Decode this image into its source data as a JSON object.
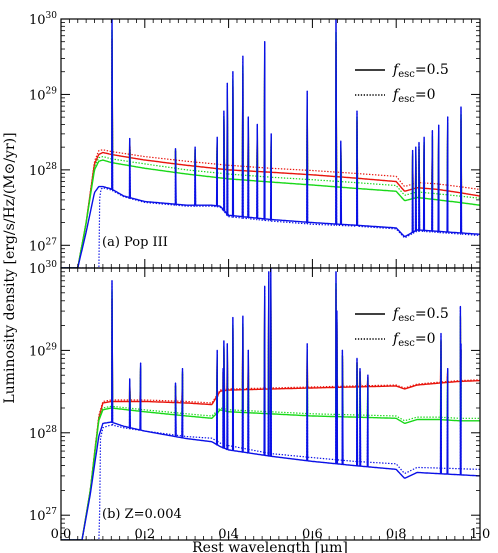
{
  "figure": {
    "ylabel": "Luminosity density [erg/s/Hz/(M⊙/yr)]",
    "xlabel": "Rest wavelength [μm]",
    "xlim": [
      0.0,
      1.0
    ],
    "xticks": [
      "0.0",
      "0.2",
      "0.4",
      "0.6",
      "0.8",
      "1.0"
    ],
    "legend": [
      {
        "f": "f",
        "sub": "esc",
        "value": "=0.5",
        "style": "solid"
      },
      {
        "f": "f",
        "sub": "esc",
        "value": "=0",
        "style": "dotted"
      }
    ],
    "colors": {
      "red": "#e8140c",
      "green": "#18d818",
      "blue": "#0a10e6",
      "axis": "#000000"
    }
  },
  "chart_data": [
    {
      "type": "line",
      "panel_label": "(a) Pop III",
      "y_scale": "log",
      "ylim": [
        5e+26,
        1e+30
      ],
      "yticks": [
        "10^27",
        "10^28",
        "10^29",
        "10^30"
      ],
      "continuum": [
        {
          "color": "red",
          "fesc": 0.5,
          "x": [
            0.04,
            0.06,
            0.08,
            0.09,
            0.1,
            0.12,
            0.2,
            0.3,
            0.4,
            0.5,
            0.6,
            0.7,
            0.8,
            0.82,
            0.85,
            0.9,
            0.95,
            1.0
          ],
          "y": [
            5e+26,
            2e+27,
            1.2e+28,
            1.6e+28,
            1.7e+28,
            1.6e+28,
            1.35e+28,
            1.15e+28,
            1e+28,
            9.3e+27,
            8.6e+27,
            7.8e+27,
            7e+27,
            5.2e+27,
            5.8e+27,
            5.5e+27,
            5e+27,
            4.5e+27
          ]
        },
        {
          "color": "red",
          "fesc": 0.0,
          "x": [
            0.04,
            0.06,
            0.08,
            0.09,
            0.1,
            0.12,
            0.2,
            0.3,
            0.4,
            0.5,
            0.6,
            0.7,
            0.8,
            0.82,
            0.85,
            0.9,
            0.95,
            1.0
          ],
          "y": [
            5e+26,
            2e+27,
            1.3e+28,
            1.8e+28,
            1.85e+28,
            1.75e+28,
            1.5e+28,
            1.3e+28,
            1.15e+28,
            1.05e+28,
            9.8e+27,
            9e+27,
            8.2e+27,
            6e+27,
            6.8e+27,
            6.5e+27,
            6e+27,
            5.5e+27
          ]
        },
        {
          "color": "green",
          "fesc": 0.5,
          "x": [
            0.04,
            0.06,
            0.08,
            0.09,
            0.1,
            0.12,
            0.2,
            0.3,
            0.4,
            0.5,
            0.6,
            0.7,
            0.8,
            0.82,
            0.85,
            0.9,
            0.95,
            1.0
          ],
          "y": [
            5e+26,
            2e+27,
            1e+28,
            1.3e+28,
            1.35e+28,
            1.25e+28,
            1.05e+28,
            8.8e+27,
            7.6e+27,
            6.9e+27,
            6.3e+27,
            5.7e+27,
            5.2e+27,
            3.9e+27,
            4.3e+27,
            4e+27,
            3.7e+27,
            3.4e+27
          ]
        },
        {
          "color": "green",
          "fesc": 0.0,
          "x": [
            0.04,
            0.06,
            0.08,
            0.09,
            0.1,
            0.12,
            0.2,
            0.3,
            0.4,
            0.5,
            0.6,
            0.7,
            0.8,
            0.82,
            0.85,
            0.9,
            0.95,
            1.0
          ],
          "y": [
            5e+26,
            2e+27,
            1.1e+28,
            1.45e+28,
            1.5e+28,
            1.4e+28,
            1.2e+28,
            1e+28,
            8.8e+27,
            8e+27,
            7.4e+27,
            6.8e+27,
            6.2e+27,
            4.6e+27,
            5.1e+27,
            4.8e+27,
            4.5e+27,
            4.2e+27
          ]
        },
        {
          "color": "blue",
          "fesc": 0.5,
          "x": [
            0.04,
            0.06,
            0.08,
            0.09,
            0.1,
            0.12,
            0.15,
            0.2,
            0.25,
            0.3,
            0.36,
            0.38,
            0.4,
            0.5,
            0.6,
            0.7,
            0.8,
            0.82,
            0.85,
            1.0
          ],
          "y": [
            5e+26,
            1.5e+27,
            5e+27,
            6e+27,
            6e+27,
            5.6e+27,
            4.5e+27,
            3.8e+27,
            3.6e+27,
            3.4e+27,
            3.4e+27,
            3.3e+27,
            2.5e+27,
            2.2e+27,
            2e+27,
            1.85e+27,
            1.7e+27,
            1.3e+27,
            1.6e+27,
            1.4e+27
          ]
        },
        {
          "color": "blue",
          "fesc": 0.0,
          "x": [
            0.04,
            0.07,
            0.085,
            0.091,
            0.092,
            0.095,
            0.1,
            0.12,
            0.15,
            0.2,
            0.25,
            0.3,
            0.36,
            0.38,
            0.4,
            0.5,
            0.6,
            0.7,
            0.8,
            0.82,
            0.85,
            1.0
          ],
          "y": [
            5e+26,
            5e+26,
            5e+26,
            5e+26,
            4e+27,
            5.5e+27,
            5.8e+27,
            5.4e+27,
            4.4e+27,
            3.7e+27,
            3.5e+27,
            3.3e+27,
            3.3e+27,
            3.2e+27,
            2.4e+27,
            2.1e+27,
            1.9e+27,
            1.8e+27,
            1.65e+27,
            1.25e+27,
            1.55e+27,
            1.35e+27
          ]
        }
      ],
      "lines": [
        {
          "x": 0.1216,
          "peak": 1e+30
        },
        {
          "x": 0.164,
          "peak": 2.6e+28
        },
        {
          "x": 0.2733,
          "peak": 1.9e+28
        },
        {
          "x": 0.32,
          "peak": 2e+28
        },
        {
          "x": 0.3727,
          "peak": 2.7e+28
        },
        {
          "x": 0.3889,
          "peak": 6e+28
        },
        {
          "x": 0.397,
          "peak": 1.4e+29
        },
        {
          "x": 0.4102,
          "peak": 2e+29
        },
        {
          "x": 0.4341,
          "peak": 3.2e+29
        },
        {
          "x": 0.4471,
          "peak": 5e+28
        },
        {
          "x": 0.4686,
          "peak": 4e+28
        },
        {
          "x": 0.4861,
          "peak": 5e+29
        },
        {
          "x": 0.5016,
          "peak": 3e+28
        },
        {
          "x": 0.5876,
          "peak": 1.1e+29
        },
        {
          "x": 0.6563,
          "peak": 1e+30
        },
        {
          "x": 0.6678,
          "peak": 2.4e+28
        },
        {
          "x": 0.7065,
          "peak": 6e+28
        },
        {
          "x": 0.8392,
          "peak": 1.8e+28
        },
        {
          "x": 0.8467,
          "peak": 2e+28
        },
        {
          "x": 0.8545,
          "peak": 2.3e+28
        },
        {
          "x": 0.8665,
          "peak": 2.7e+28
        },
        {
          "x": 0.8863,
          "peak": 3.3e+28
        },
        {
          "x": 0.9015,
          "peak": 3.9e+28
        },
        {
          "x": 0.9229,
          "peak": 5e+28
        },
        {
          "x": 0.9546,
          "peak": 6.8e+28
        },
        {
          "x": 1.0049,
          "peak": 3.3e+29
        }
      ]
    },
    {
      "type": "line",
      "panel_label": "(b) Z=0.004",
      "y_scale": "log",
      "ylim": [
        5e+26,
        1e+30
      ],
      "yticks": [
        "10^27",
        "10^28",
        "10^29",
        "10^30"
      ],
      "continuum": [
        {
          "color": "red",
          "fesc": 0.5,
          "x": [
            0.05,
            0.07,
            0.09,
            0.1,
            0.12,
            0.2,
            0.3,
            0.36,
            0.38,
            0.4,
            0.5,
            0.6,
            0.7,
            0.8,
            0.82,
            0.85,
            0.9,
            0.95,
            1.0
          ],
          "y": [
            5e+26,
            2e+27,
            1.5e+28,
            2.3e+28,
            2.4e+28,
            2.4e+28,
            2.3e+28,
            2.2e+28,
            3.2e+28,
            3.3e+28,
            3.4e+28,
            3.5e+28,
            3.6e+28,
            3.7e+28,
            3.4e+28,
            3.8e+28,
            4e+28,
            4.2e+28,
            4.3e+28
          ]
        },
        {
          "color": "red",
          "fesc": 0.0,
          "x": [
            0.05,
            0.07,
            0.09,
            0.1,
            0.12,
            0.2,
            0.3,
            0.36,
            0.38,
            0.4,
            0.5,
            0.6,
            0.7,
            0.8,
            0.82,
            0.85,
            0.9,
            0.95,
            1.0
          ],
          "y": [
            5e+26,
            2e+27,
            1.6e+28,
            2.4e+28,
            2.5e+28,
            2.5e+28,
            2.4e+28,
            2.3e+28,
            3.3e+28,
            3.4e+28,
            3.5e+28,
            3.6e+28,
            3.7e+28,
            3.8e+28,
            3.5e+28,
            3.9e+28,
            4.1e+28,
            4.3e+28,
            4.4e+28
          ]
        },
        {
          "color": "green",
          "fesc": 0.5,
          "x": [
            0.05,
            0.07,
            0.09,
            0.1,
            0.12,
            0.2,
            0.3,
            0.36,
            0.38,
            0.4,
            0.5,
            0.6,
            0.7,
            0.8,
            0.82,
            0.85,
            0.9,
            0.95,
            1.0
          ],
          "y": [
            5e+26,
            2e+27,
            1.4e+28,
            1.9e+28,
            2e+28,
            1.8e+28,
            1.6e+28,
            1.5e+28,
            1.9e+28,
            1.8e+28,
            1.7e+28,
            1.6e+28,
            1.55e+28,
            1.5e+28,
            1.3e+28,
            1.45e+28,
            1.45e+28,
            1.4e+28,
            1.4e+28
          ]
        },
        {
          "color": "green",
          "fesc": 0.0,
          "x": [
            0.05,
            0.07,
            0.09,
            0.1,
            0.12,
            0.2,
            0.3,
            0.36,
            0.38,
            0.4,
            0.5,
            0.6,
            0.7,
            0.8,
            0.82,
            0.85,
            0.9,
            0.95,
            1.0
          ],
          "y": [
            5e+26,
            2e+27,
            1.5e+28,
            2e+28,
            2.1e+28,
            1.9e+28,
            1.7e+28,
            1.6e+28,
            2e+28,
            1.9e+28,
            1.8e+28,
            1.7e+28,
            1.65e+28,
            1.6e+28,
            1.4e+28,
            1.55e+28,
            1.55e+28,
            1.5e+28,
            1.5e+28
          ]
        },
        {
          "color": "blue",
          "fesc": 0.5,
          "x": [
            0.03,
            0.05,
            0.07,
            0.09,
            0.1,
            0.12,
            0.15,
            0.2,
            0.3,
            0.36,
            0.38,
            0.4,
            0.5,
            0.6,
            0.7,
            0.8,
            0.82,
            0.85,
            1.0
          ],
          "y": [
            4e+26,
            5e+26,
            1.8e+27,
            9e+27,
            1.3e+28,
            1.35e+28,
            1.2e+28,
            1.05e+28,
            8.5e+27,
            7.8e+27,
            6.8e+27,
            6.2e+27,
            5.2e+27,
            4.5e+27,
            4e+27,
            3.6e+27,
            2.8e+27,
            3.3e+27,
            3e+27
          ]
        },
        {
          "color": "blue",
          "fesc": 0.0,
          "x": [
            0.03,
            0.07,
            0.085,
            0.092,
            0.093,
            0.1,
            0.12,
            0.15,
            0.2,
            0.3,
            0.36,
            0.38,
            0.4,
            0.5,
            0.6,
            0.7,
            0.8,
            0.82,
            0.85,
            1.0
          ],
          "y": [
            5e+26,
            5e+26,
            5e+26,
            5e+26,
            8e+27,
            1.15e+28,
            1.25e+28,
            1.15e+28,
            1.05e+28,
            9e+27,
            8.6e+27,
            7.5e+27,
            7e+27,
            5.6e+27,
            5e+27,
            4.5e+27,
            4.2e+27,
            3.2e+27,
            3.8e+27,
            3.6e+27
          ]
        }
      ],
      "lines": [
        {
          "x": 0.1216,
          "peak": 7e+29
        },
        {
          "x": 0.164,
          "peak": 4.5e+28
        },
        {
          "x": 0.19,
          "peak": 7e+28
        },
        {
          "x": 0.2733,
          "peak": 4e+28
        },
        {
          "x": 0.29,
          "peak": 6e+28
        },
        {
          "x": 0.3727,
          "peak": 1e+29
        },
        {
          "x": 0.3869,
          "peak": 6e+28
        },
        {
          "x": 0.3889,
          "peak": 1.3e+29
        },
        {
          "x": 0.397,
          "peak": 1.2e+29
        },
        {
          "x": 0.4102,
          "peak": 2.5e+29
        },
        {
          "x": 0.4341,
          "peak": 2.6e+29
        },
        {
          "x": 0.4471,
          "peak": 1e+29
        },
        {
          "x": 0.4861,
          "peak": 6e+29
        },
        {
          "x": 0.4959,
          "peak": 9e+29
        },
        {
          "x": 0.5007,
          "peak": 1e+30
        },
        {
          "x": 0.5876,
          "peak": 1.2e+29
        },
        {
          "x": 0.6563,
          "peak": 9e+29
        },
        {
          "x": 0.6584,
          "peak": 3e+29
        },
        {
          "x": 0.6717,
          "peak": 1e+29
        },
        {
          "x": 0.7065,
          "peak": 8e+28
        },
        {
          "x": 0.7136,
          "peak": 6e+28
        },
        {
          "x": 0.7325,
          "peak": 5e+28
        },
        {
          "x": 0.9069,
          "peak": 1.6e+29
        },
        {
          "x": 0.9229,
          "peak": 6e+28
        },
        {
          "x": 0.9532,
          "peak": 3.4e+29
        },
        {
          "x": 0.9546,
          "peak": 1.2e+29
        }
      ]
    }
  ]
}
